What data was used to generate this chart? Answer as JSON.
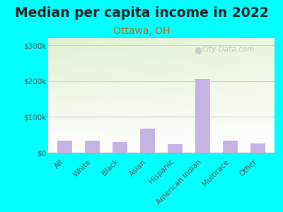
{
  "title": "Median per capita income in 2022",
  "subtitle": "Ottawa, OH",
  "categories": [
    "All",
    "White",
    "Black",
    "Asian",
    "Hispanic",
    "American Indian",
    "Multirace",
    "Other"
  ],
  "values": [
    33000,
    34000,
    30000,
    68000,
    23000,
    205000,
    34000,
    25000
  ],
  "bar_color": "#c5b4e3",
  "title_fontsize": 13.5,
  "subtitle_fontsize": 10,
  "subtitle_color": "#cc6600",
  "title_color": "#222222",
  "bg_color": "#00ffff",
  "ylabel_ticks": [
    "$0",
    "$100k",
    "$200k",
    "$300k"
  ],
  "ytick_vals": [
    0,
    100000,
    200000,
    300000
  ],
  "ylim": [
    0,
    320000
  ],
  "watermark": "City-Data.com",
  "tick_color": "#555555",
  "grid_color": "#c8c8c8",
  "xlabel_rotation": 45,
  "xlabel_fontsize": 7.5
}
